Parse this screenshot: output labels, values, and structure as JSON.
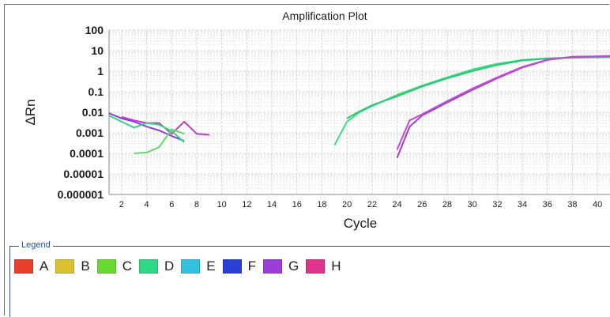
{
  "chart_data": {
    "type": "line",
    "title": "Amplification Plot",
    "xlabel": "Cycle",
    "ylabel": "ΔRn",
    "yscale": "log",
    "ylim": [
      1e-06,
      100
    ],
    "xlim": [
      1,
      41
    ],
    "x_ticks": [
      2,
      4,
      6,
      8,
      10,
      12,
      14,
      16,
      18,
      20,
      22,
      24,
      26,
      28,
      30,
      32,
      34,
      36,
      38,
      40
    ],
    "y_ticks": [
      {
        "value": 100,
        "label": "100"
      },
      {
        "value": 10,
        "label": "10"
      },
      {
        "value": 1,
        "label": "1"
      },
      {
        "value": 0.1,
        "label": "0.1"
      },
      {
        "value": 0.01,
        "label": "0.01"
      },
      {
        "value": 0.001,
        "label": "0.001"
      },
      {
        "value": 0.0001,
        "label": "0.0001"
      },
      {
        "value": 1e-05,
        "label": "0.00001"
      },
      {
        "value": 1e-06,
        "label": "0.000001"
      }
    ],
    "grid": true,
    "series": [
      {
        "color": "#8a3fd6",
        "x": [
          1,
          2,
          3,
          4,
          5,
          6,
          7
        ],
        "y": [
          0.009,
          0.005,
          0.0035,
          0.002,
          0.0013,
          0.0007,
          0.0004
        ]
      },
      {
        "color": "#c03ad0",
        "x": [
          2,
          3,
          4,
          5,
          6,
          7,
          8,
          9
        ],
        "y": [
          0.006,
          0.004,
          0.003,
          0.003,
          0.0009,
          0.0035,
          0.0009,
          0.0008
        ]
      },
      {
        "color": "#34d37d",
        "x": [
          1,
          2,
          3,
          4,
          5,
          6,
          7
        ],
        "y": [
          0.007,
          0.0035,
          0.0018,
          0.003,
          0.0025,
          0.0012,
          0.00035
        ]
      },
      {
        "color": "#5fd86a",
        "x": [
          3,
          4,
          5,
          6,
          7
        ],
        "y": [
          0.0001,
          0.00011,
          0.0002,
          0.0015,
          0.0009
        ]
      },
      {
        "color": "#3ddc84",
        "x": [
          19,
          20,
          21,
          22,
          24,
          26,
          28,
          30,
          32,
          34,
          36,
          38,
          40,
          41
        ],
        "y": [
          0.00025,
          0.0035,
          0.01,
          0.02,
          0.07,
          0.2,
          0.5,
          1.2,
          2.3,
          3.5,
          4.2,
          4.6,
          4.8,
          4.9
        ]
      },
      {
        "color": "#28c870",
        "x": [
          20,
          21,
          22,
          24,
          26,
          28,
          30,
          32,
          34,
          36,
          38,
          40,
          41
        ],
        "y": [
          0.005,
          0.011,
          0.022,
          0.06,
          0.18,
          0.45,
          1.0,
          2.0,
          3.3,
          4.1,
          4.5,
          4.7,
          4.8
        ]
      },
      {
        "color": "#9b3fd8",
        "x": [
          24,
          25,
          26,
          28,
          30,
          32,
          34,
          36,
          38,
          40,
          41
        ],
        "y": [
          6e-05,
          0.002,
          0.007,
          0.03,
          0.12,
          0.45,
          1.5,
          3.5,
          5.0,
          5.3,
          5.5
        ]
      },
      {
        "color": "#c44ad6",
        "x": [
          24,
          25,
          26,
          28,
          30,
          32,
          34,
          36,
          38,
          40,
          41
        ],
        "y": [
          0.00015,
          0.004,
          0.008,
          0.035,
          0.14,
          0.5,
          1.6,
          3.6,
          4.9,
          5.2,
          5.4
        ]
      }
    ]
  },
  "legend": {
    "title": "Legend",
    "items": [
      {
        "label": "A",
        "color": "#e8412a"
      },
      {
        "label": "B",
        "color": "#d9c130"
      },
      {
        "label": "C",
        "color": "#67d92f"
      },
      {
        "label": "D",
        "color": "#30d886"
      },
      {
        "label": "E",
        "color": "#33c3e0"
      },
      {
        "label": "F",
        "color": "#2a3fd6"
      },
      {
        "label": "G",
        "color": "#9b3fd8"
      },
      {
        "label": "H",
        "color": "#e0338e"
      }
    ]
  }
}
